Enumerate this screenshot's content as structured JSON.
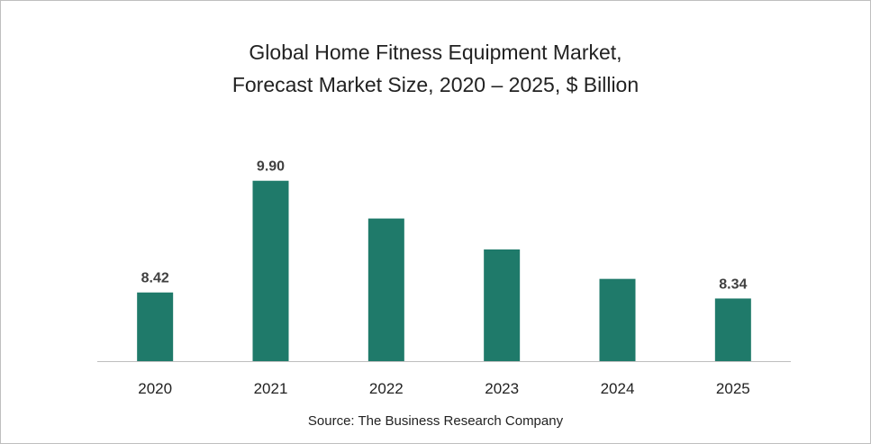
{
  "chart_data": {
    "type": "bar",
    "title_line1": "Global Home Fitness Equipment Market,",
    "title_line2": "Forecast Market Size, 2020 – 2025, $ Billion",
    "categories": [
      "2020",
      "2021",
      "2022",
      "2023",
      "2024",
      "2025"
    ],
    "values": [
      8.42,
      9.9,
      9.4,
      8.99,
      8.6,
      8.34
    ],
    "data_labels": [
      "8.42",
      "9.90",
      "",
      "",
      "",
      "8.34"
    ],
    "xlabel": "",
    "ylabel": "",
    "ylim": [
      7.51,
      10.3
    ],
    "grid": false,
    "bar_color": "#1f7a6a",
    "source": "Source: The Business Research Company"
  }
}
